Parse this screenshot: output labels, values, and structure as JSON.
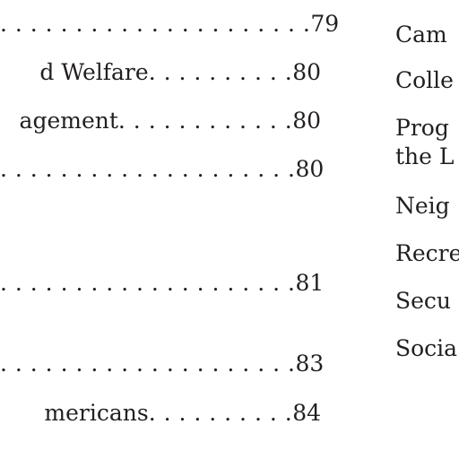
{
  "left_column": {
    "rows": [
      {
        "entry": "",
        "dots": ". . . . . . . . . . . . . . . . . . . . .",
        "page": "79"
      },
      {
        "entry": "d Welfare",
        "dots": ". . . . . . . . . .",
        "page": "80"
      },
      {
        "entry": "agement",
        "dots": ". . . . . . . . . . . .",
        "page": "80"
      },
      {
        "entry": "",
        "dots": ". . . . . . . . . . . . . . . . . . . .",
        "page": "80"
      },
      {
        "entry": "",
        "dots": ". . . . . . . . . . . . . . . . . . . .",
        "page": "81"
      },
      {
        "entry": "",
        "dots": ". . . . . . . . . . . . . . . . . . . .",
        "page": "83"
      },
      {
        "entry": "mericans",
        "dots": ". . . . . . . . . .",
        "page": "84"
      }
    ]
  },
  "right_column": {
    "lines": [
      "Cam",
      "Colle",
      "Prog",
      "the L",
      "Neig",
      "Recre",
      "Secu",
      "Socia"
    ]
  }
}
